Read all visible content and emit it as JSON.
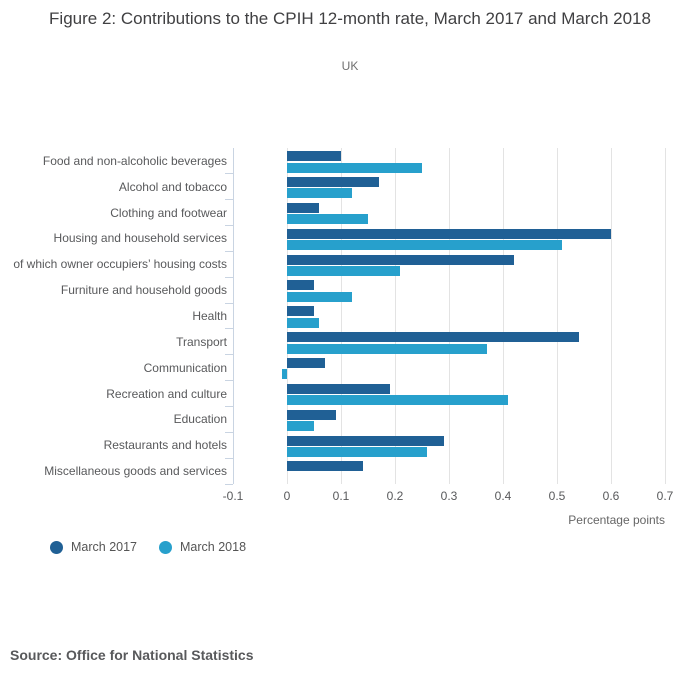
{
  "header": {
    "title": "Figure 2: Contributions to the CPIH 12-month rate, March 2017 and March 2018",
    "subtitle": "UK"
  },
  "chart_data": {
    "type": "bar",
    "orientation": "horizontal",
    "title": "Figure 2: Contributions to the CPIH 12-month rate, March 2017 and March 2018",
    "subtitle": "UK",
    "categories": [
      "Food and non-alcoholic beverages",
      "Alcohol and tobacco",
      "Clothing and footwear",
      "Housing and household services",
      "of which owner occupiers’ housing costs",
      "Furniture and household goods",
      "Health",
      "Transport",
      "Communication",
      "Recreation and culture",
      "Education",
      "Restaurants and hotels",
      "Miscellaneous goods and services"
    ],
    "series": [
      {
        "name": "March 2017",
        "color": "#206095",
        "values": [
          0.1,
          0.17,
          0.06,
          0.6,
          0.42,
          0.05,
          0.05,
          0.54,
          0.07,
          0.19,
          0.09,
          0.29,
          0.14
        ]
      },
      {
        "name": "March 2018",
        "color": "#27a0cc",
        "values": [
          0.25,
          0.12,
          0.15,
          0.51,
          0.21,
          0.12,
          0.06,
          0.37,
          -0.01,
          0.41,
          0.05,
          0.26,
          0.0
        ]
      }
    ],
    "xlabel": "Percentage points",
    "ylabel": "",
    "xlim": [
      -0.1,
      0.7
    ],
    "tick_values": [
      -0.1,
      0,
      0.1,
      0.2,
      0.3,
      0.4,
      0.5,
      0.6,
      0.7
    ],
    "tick_labels": [
      "-0.1",
      "0",
      "0.1",
      "0.2",
      "0.3",
      "0.4",
      "0.5",
      "0.6",
      "0.7"
    ],
    "grid": true,
    "legend_position": "bottom-left"
  },
  "footer": {
    "source": "Source: Office for National Statistics"
  }
}
